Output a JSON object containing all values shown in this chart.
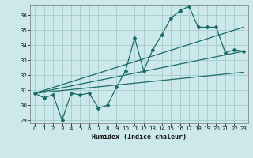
{
  "background_color": "#cce8ea",
  "grid_color": "#aacfcf",
  "line_color": "#1a6b6b",
  "xlabel": "Humidex (Indice chaleur)",
  "xlim": [
    -0.5,
    23.5
  ],
  "ylim": [
    28.8,
    36.7
  ],
  "yticks": [
    29,
    30,
    31,
    32,
    33,
    34,
    35,
    36
  ],
  "xticks": [
    0,
    1,
    2,
    3,
    4,
    5,
    6,
    7,
    8,
    9,
    10,
    11,
    12,
    13,
    14,
    15,
    16,
    17,
    18,
    19,
    20,
    21,
    22,
    23
  ],
  "main_x": [
    0,
    1,
    2,
    3,
    4,
    5,
    6,
    7,
    8,
    9,
    10,
    11,
    12,
    13,
    14,
    15,
    16,
    17,
    18,
    19,
    20,
    21,
    22,
    23
  ],
  "main_y": [
    30.8,
    30.5,
    30.7,
    29.0,
    30.8,
    30.7,
    30.8,
    29.8,
    30.0,
    31.2,
    32.3,
    34.5,
    32.3,
    33.7,
    34.7,
    35.8,
    36.3,
    36.6,
    35.2,
    35.2,
    35.2,
    33.5,
    33.7,
    33.6
  ],
  "line2_x": [
    0,
    23
  ],
  "line2_y": [
    30.8,
    35.2
  ],
  "line3_x": [
    0,
    23
  ],
  "line3_y": [
    30.8,
    33.6
  ],
  "line4_x": [
    0,
    23
  ],
  "line4_y": [
    30.8,
    32.2
  ]
}
